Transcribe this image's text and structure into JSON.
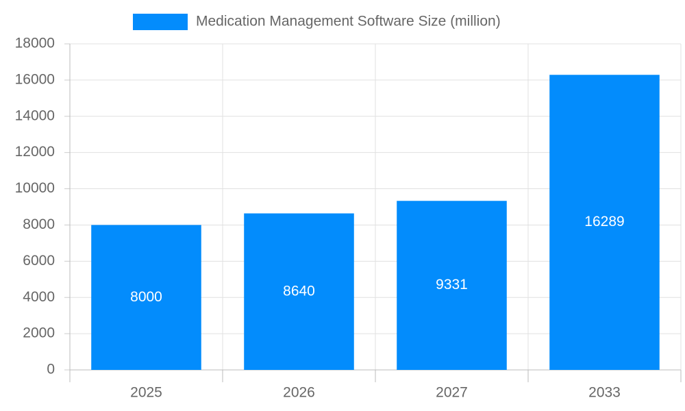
{
  "chart_data": {
    "type": "bar",
    "categories": [
      "2025",
      "2026",
      "2027",
      "2033"
    ],
    "series": [
      {
        "name": "Medication Management Software Size (million)",
        "color": "#038cfc",
        "values": [
          8000,
          8640,
          9331,
          16289
        ]
      }
    ],
    "ylim": [
      0,
      18000
    ],
    "yticks": [
      0,
      2000,
      4000,
      6000,
      8000,
      10000,
      12000,
      14000,
      16000,
      18000
    ],
    "grid": true,
    "legend": "top",
    "data_labels": true
  }
}
